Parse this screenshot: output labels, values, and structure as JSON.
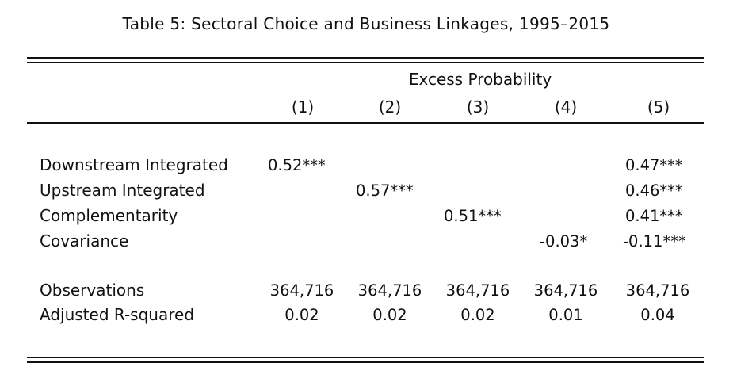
{
  "caption": "Table 5: Sectoral Choice and Business Linkages, 1995–2015",
  "header": {
    "group_label": "Excess Probability",
    "columns": [
      "(1)",
      "(2)",
      "(3)",
      "(4)",
      "(5)"
    ]
  },
  "rows": [
    {
      "label": "Downstream Integrated",
      "cells": [
        "0.52***",
        "",
        "",
        "",
        "0.47***"
      ]
    },
    {
      "label": "Upstream Integrated",
      "cells": [
        "",
        "0.57***",
        "",
        "",
        "0.46***"
      ]
    },
    {
      "label": "Complementarity",
      "cells": [
        "",
        "",
        "0.51***",
        "",
        "0.41***"
      ]
    },
    {
      "label": "Covariance",
      "cells": [
        "",
        "",
        "",
        "-0.03*",
        "-0.11***"
      ]
    }
  ],
  "stats": [
    {
      "label": "Observations",
      "cells": [
        "364,716",
        "364,716",
        "364,716",
        "364,716",
        "364,716"
      ]
    },
    {
      "label": "Adjusted R-squared",
      "cells": [
        "0.02",
        "0.02",
        "0.02",
        "0.01",
        "0.04"
      ]
    }
  ]
}
